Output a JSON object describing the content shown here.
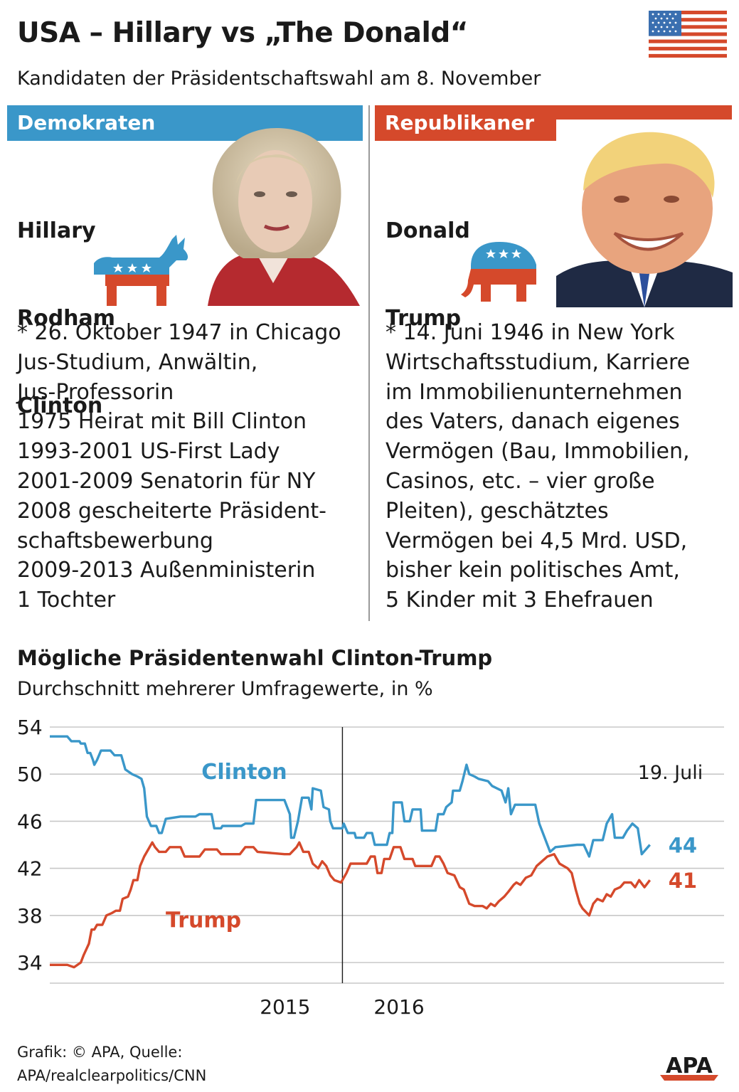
{
  "header": {
    "title": "USA – Hillary vs „The Donald“",
    "subtitle": "Kandidaten der Präsidentschaftswahl am 8. November"
  },
  "colors": {
    "democrat": "#3a97c9",
    "republican": "#d5492b",
    "grid": "#c8c8c8",
    "text": "#1a1a1a"
  },
  "democrats": {
    "party_label": "Demokraten",
    "name_lines": [
      "Hillary",
      "Rodham",
      "Clinton"
    ],
    "bio_lines": [
      "* 26. Oktober 1947 in Chicago",
      "Jus-Studium, Anwältin,",
      "Jus-Professorin",
      "1975 Heirat mit Bill Clinton",
      "1993-2001 US-First Lady",
      "2001-2009 Senatorin für NY",
      "2008 gescheiterte Präsident-",
      "schaftsbewerbung",
      "2009-2013 Außenministerin",
      "1 Tochter"
    ],
    "icon": "donkey-icon"
  },
  "republicans": {
    "party_label": "Republikaner",
    "name_lines": [
      "Donald",
      "Trump"
    ],
    "bio_lines": [
      "* 14. Juni 1946 in New York",
      "Wirtschaftsstudium, Karriere",
      "im Immobilienunternehmen",
      "des Vaters, danach eigenes",
      "Vermögen (Bau, Immobilien,",
      "Casinos, etc. – vier große",
      "Pleiten), geschätztes",
      "Vermögen bei 4,5 Mrd. USD,",
      "bisher kein politisches Amt,",
      "5 Kinder mit 3 Ehefrauen"
    ],
    "icon": "elephant-icon"
  },
  "chart_data": {
    "type": "line",
    "title": "Mögliche Präsidentenwahl Clinton-Trump",
    "subtitle": "Durchschnitt mehrerer Umfragewerte, in %",
    "ylim": [
      34,
      54
    ],
    "yticks": [
      54,
      50,
      46,
      42,
      38,
      34
    ],
    "x_range": [
      0,
      1
    ],
    "x_ticks": [
      {
        "label": "2015",
        "x": 0.349
      },
      {
        "label": "2016",
        "x": 0.518
      }
    ],
    "year_boundary_x": 0.434,
    "date_annotation": "19. Juli",
    "grid": true,
    "series": [
      {
        "name": "Clinton",
        "color": "#3a97c9",
        "end_label": "44",
        "points": [
          [
            0.0,
            53.2
          ],
          [
            0.026,
            53.2
          ],
          [
            0.032,
            52.8
          ],
          [
            0.044,
            52.8
          ],
          [
            0.046,
            52.6
          ],
          [
            0.052,
            52.6
          ],
          [
            0.056,
            51.8
          ],
          [
            0.06,
            51.8
          ],
          [
            0.064,
            51.2
          ],
          [
            0.066,
            50.8
          ],
          [
            0.07,
            51.2
          ],
          [
            0.076,
            52.0
          ],
          [
            0.09,
            52.0
          ],
          [
            0.096,
            51.6
          ],
          [
            0.106,
            51.6
          ],
          [
            0.112,
            50.4
          ],
          [
            0.122,
            50.0
          ],
          [
            0.13,
            49.8
          ],
          [
            0.136,
            49.6
          ],
          [
            0.14,
            48.8
          ],
          [
            0.144,
            46.4
          ],
          [
            0.15,
            45.6
          ],
          [
            0.158,
            45.6
          ],
          [
            0.162,
            45.0
          ],
          [
            0.166,
            45.0
          ],
          [
            0.172,
            46.2
          ],
          [
            0.194,
            46.4
          ],
          [
            0.216,
            46.4
          ],
          [
            0.222,
            46.6
          ],
          [
            0.24,
            46.6
          ],
          [
            0.244,
            45.4
          ],
          [
            0.254,
            45.4
          ],
          [
            0.256,
            45.6
          ],
          [
            0.284,
            45.6
          ],
          [
            0.29,
            45.8
          ],
          [
            0.302,
            45.8
          ],
          [
            0.306,
            47.8
          ],
          [
            0.348,
            47.8
          ],
          [
            0.356,
            46.6
          ],
          [
            0.358,
            44.6
          ],
          [
            0.362,
            44.6
          ],
          [
            0.368,
            46.0
          ],
          [
            0.374,
            48.0
          ],
          [
            0.384,
            48.0
          ],
          [
            0.388,
            47.0
          ],
          [
            0.39,
            48.8
          ],
          [
            0.402,
            48.6
          ],
          [
            0.406,
            47.2
          ],
          [
            0.414,
            47.0
          ],
          [
            0.416,
            46.0
          ],
          [
            0.42,
            45.4
          ],
          [
            0.434,
            45.4
          ],
          [
            0.436,
            45.8
          ],
          [
            0.442,
            45.0
          ],
          [
            0.452,
            45.0
          ],
          [
            0.454,
            44.6
          ],
          [
            0.466,
            44.6
          ],
          [
            0.47,
            45.0
          ],
          [
            0.478,
            45.0
          ],
          [
            0.482,
            44.0
          ],
          [
            0.5,
            44.0
          ],
          [
            0.504,
            45.0
          ],
          [
            0.508,
            45.0
          ],
          [
            0.51,
            47.6
          ],
          [
            0.522,
            47.6
          ],
          [
            0.526,
            46.0
          ],
          [
            0.534,
            46.0
          ],
          [
            0.538,
            47.0
          ],
          [
            0.55,
            47.0
          ],
          [
            0.552,
            45.2
          ],
          [
            0.572,
            45.2
          ],
          [
            0.576,
            46.6
          ],
          [
            0.584,
            46.6
          ],
          [
            0.588,
            47.2
          ],
          [
            0.596,
            47.6
          ],
          [
            0.598,
            48.6
          ],
          [
            0.608,
            48.6
          ],
          [
            0.612,
            49.4
          ],
          [
            0.618,
            50.8
          ],
          [
            0.622,
            50.0
          ],
          [
            0.63,
            49.8
          ],
          [
            0.636,
            49.6
          ],
          [
            0.65,
            49.4
          ],
          [
            0.656,
            49.0
          ],
          [
            0.67,
            48.6
          ],
          [
            0.676,
            47.6
          ],
          [
            0.68,
            48.8
          ],
          [
            0.684,
            46.6
          ],
          [
            0.69,
            47.4
          ],
          [
            0.72,
            47.4
          ],
          [
            0.726,
            45.8
          ],
          [
            0.738,
            44.0
          ],
          [
            0.742,
            43.4
          ],
          [
            0.75,
            43.8
          ],
          [
            0.782,
            44.0
          ],
          [
            0.792,
            44.0
          ],
          [
            0.8,
            43.0
          ],
          [
            0.806,
            44.4
          ],
          [
            0.82,
            44.4
          ],
          [
            0.826,
            45.8
          ],
          [
            0.834,
            46.6
          ],
          [
            0.838,
            44.6
          ],
          [
            0.85,
            44.6
          ],
          [
            0.856,
            45.2
          ],
          [
            0.864,
            45.8
          ],
          [
            0.872,
            45.4
          ],
          [
            0.878,
            43.2
          ],
          [
            0.89,
            44.0
          ]
        ]
      },
      {
        "name": "Trump",
        "color": "#d5492b",
        "end_label": "41",
        "points": [
          [
            0.0,
            33.8
          ],
          [
            0.026,
            33.8
          ],
          [
            0.036,
            33.6
          ],
          [
            0.046,
            34.0
          ],
          [
            0.05,
            34.6
          ],
          [
            0.058,
            35.6
          ],
          [
            0.062,
            36.8
          ],
          [
            0.066,
            36.8
          ],
          [
            0.07,
            37.2
          ],
          [
            0.078,
            37.2
          ],
          [
            0.084,
            38.0
          ],
          [
            0.092,
            38.2
          ],
          [
            0.098,
            38.4
          ],
          [
            0.104,
            38.4
          ],
          [
            0.108,
            39.4
          ],
          [
            0.116,
            39.6
          ],
          [
            0.12,
            40.2
          ],
          [
            0.124,
            41.0
          ],
          [
            0.13,
            41.0
          ],
          [
            0.134,
            42.2
          ],
          [
            0.14,
            43.0
          ],
          [
            0.146,
            43.6
          ],
          [
            0.152,
            44.2
          ],
          [
            0.156,
            43.8
          ],
          [
            0.162,
            43.4
          ],
          [
            0.172,
            43.4
          ],
          [
            0.178,
            43.8
          ],
          [
            0.194,
            43.8
          ],
          [
            0.2,
            43.0
          ],
          [
            0.222,
            43.0
          ],
          [
            0.23,
            43.6
          ],
          [
            0.248,
            43.6
          ],
          [
            0.254,
            43.2
          ],
          [
            0.282,
            43.2
          ],
          [
            0.29,
            43.8
          ],
          [
            0.302,
            43.8
          ],
          [
            0.308,
            43.4
          ],
          [
            0.348,
            43.2
          ],
          [
            0.356,
            43.2
          ],
          [
            0.366,
            43.8
          ],
          [
            0.37,
            44.2
          ],
          [
            0.376,
            43.4
          ],
          [
            0.384,
            43.4
          ],
          [
            0.39,
            42.4
          ],
          [
            0.398,
            42.0
          ],
          [
            0.404,
            42.6
          ],
          [
            0.41,
            42.2
          ],
          [
            0.416,
            41.4
          ],
          [
            0.422,
            41.0
          ],
          [
            0.432,
            40.8
          ],
          [
            0.44,
            41.6
          ],
          [
            0.446,
            42.4
          ],
          [
            0.47,
            42.4
          ],
          [
            0.476,
            43.0
          ],
          [
            0.482,
            43.0
          ],
          [
            0.486,
            41.6
          ],
          [
            0.492,
            41.6
          ],
          [
            0.496,
            42.8
          ],
          [
            0.504,
            42.8
          ],
          [
            0.51,
            43.8
          ],
          [
            0.52,
            43.8
          ],
          [
            0.526,
            42.8
          ],
          [
            0.538,
            42.8
          ],
          [
            0.542,
            42.2
          ],
          [
            0.566,
            42.2
          ],
          [
            0.572,
            43.0
          ],
          [
            0.578,
            43.0
          ],
          [
            0.584,
            42.4
          ],
          [
            0.59,
            41.6
          ],
          [
            0.6,
            41.4
          ],
          [
            0.608,
            40.4
          ],
          [
            0.614,
            40.2
          ],
          [
            0.622,
            39.0
          ],
          [
            0.63,
            38.8
          ],
          [
            0.642,
            38.8
          ],
          [
            0.648,
            38.6
          ],
          [
            0.654,
            39.0
          ],
          [
            0.66,
            38.8
          ],
          [
            0.666,
            39.2
          ],
          [
            0.674,
            39.6
          ],
          [
            0.68,
            40.0
          ],
          [
            0.688,
            40.6
          ],
          [
            0.692,
            40.8
          ],
          [
            0.698,
            40.6
          ],
          [
            0.706,
            41.2
          ],
          [
            0.714,
            41.4
          ],
          [
            0.722,
            42.2
          ],
          [
            0.73,
            42.6
          ],
          [
            0.738,
            43.0
          ],
          [
            0.748,
            43.2
          ],
          [
            0.756,
            42.4
          ],
          [
            0.768,
            42.0
          ],
          [
            0.774,
            41.6
          ],
          [
            0.78,
            40.2
          ],
          [
            0.786,
            39.0
          ],
          [
            0.79,
            38.6
          ],
          [
            0.8,
            38.0
          ],
          [
            0.806,
            39.0
          ],
          [
            0.812,
            39.4
          ],
          [
            0.82,
            39.2
          ],
          [
            0.826,
            39.8
          ],
          [
            0.832,
            39.6
          ],
          [
            0.838,
            40.2
          ],
          [
            0.846,
            40.4
          ],
          [
            0.852,
            40.8
          ],
          [
            0.862,
            40.8
          ],
          [
            0.868,
            40.4
          ],
          [
            0.874,
            41.0
          ],
          [
            0.882,
            40.4
          ],
          [
            0.89,
            41.0
          ]
        ]
      }
    ]
  },
  "footer": {
    "source_lines": [
      "Grafik: © APA, Quelle:",
      "APA/realclearpolitics/CNN"
    ],
    "logo_text": "APA"
  }
}
